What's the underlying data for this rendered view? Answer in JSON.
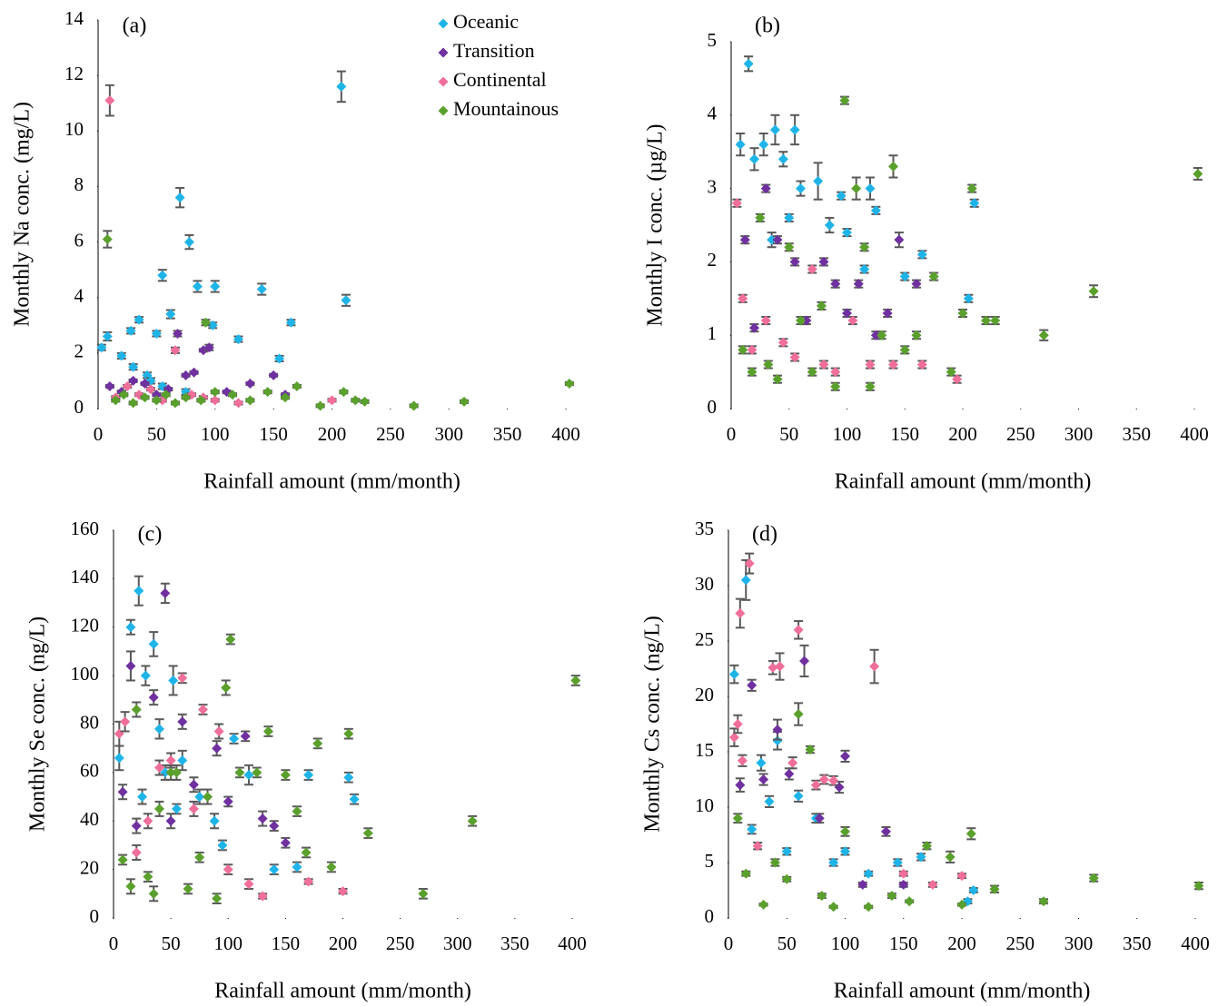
{
  "chart_data": [
    {
      "type": "scatter",
      "label": "(a)",
      "x_label": "Rainfall amount (mm/month)",
      "y_label": "Monthly Na conc. (mg/L)",
      "xlim": [
        0,
        400
      ],
      "xticks": [
        0,
        50,
        100,
        150,
        200,
        250,
        300,
        350,
        400
      ],
      "ylim": [
        0,
        14
      ],
      "yticks": [
        0,
        2,
        4,
        6,
        8,
        10,
        12,
        14
      ],
      "legend": "upper right",
      "series": [
        {
          "name": "Oceanic",
          "color": "#1fb4e8",
          "x": [
            3,
            8,
            20,
            28,
            35,
            42,
            50,
            55,
            62,
            70,
            78,
            85,
            98,
            100,
            120,
            140,
            155,
            165,
            208,
            212,
            30,
            45,
            55,
            75
          ],
          "values": [
            2.2,
            2.6,
            1.9,
            2.8,
            3.2,
            1.2,
            2.7,
            4.8,
            3.4,
            7.6,
            6.0,
            4.4,
            3.0,
            4.4,
            2.5,
            4.3,
            1.8,
            3.1,
            11.6,
            3.9,
            1.5,
            1.0,
            0.8,
            0.6
          ],
          "errors": [
            0.1,
            0.15,
            0.1,
            0.1,
            0.1,
            0.1,
            0.1,
            0.2,
            0.15,
            0.35,
            0.25,
            0.2,
            0.1,
            0.2,
            0.1,
            0.2,
            0.1,
            0.1,
            0.55,
            0.2,
            0.1,
            0.1,
            0.1,
            0.1
          ]
        },
        {
          "name": "Transition",
          "color": "#7030a0",
          "x": [
            10,
            20,
            30,
            40,
            50,
            60,
            68,
            75,
            82,
            90,
            95,
            110,
            130,
            150,
            160
          ],
          "values": [
            0.8,
            0.6,
            1.0,
            0.9,
            0.5,
            0.7,
            2.7,
            1.2,
            1.3,
            2.1,
            2.2,
            0.6,
            0.9,
            1.2,
            0.5
          ],
          "errors": [
            0.05,
            0.05,
            0.05,
            0.05,
            0.05,
            0.05,
            0.1,
            0.05,
            0.05,
            0.05,
            0.1,
            0.05,
            0.05,
            0.05,
            0.05
          ]
        },
        {
          "name": "Continental",
          "color": "#f06e9a",
          "x": [
            10,
            15,
            25,
            35,
            45,
            55,
            66,
            80,
            90,
            100,
            120,
            200
          ],
          "values": [
            11.1,
            0.4,
            0.8,
            0.5,
            0.7,
            0.3,
            2.1,
            0.5,
            0.4,
            0.3,
            0.2,
            0.3
          ],
          "errors": [
            0.55,
            0.05,
            0.05,
            0.05,
            0.05,
            0.05,
            0.1,
            0.05,
            0.05,
            0.05,
            0.05,
            0.05
          ]
        },
        {
          "name": "Mountainous",
          "color": "#5aa02c",
          "x": [
            8,
            15,
            22,
            30,
            40,
            50,
            58,
            66,
            75,
            88,
            92,
            100,
            115,
            130,
            145,
            160,
            170,
            190,
            210,
            220,
            228,
            270,
            313,
            403
          ],
          "values": [
            6.1,
            0.3,
            0.5,
            0.2,
            0.4,
            0.3,
            0.5,
            0.2,
            0.4,
            0.3,
            3.1,
            0.6,
            0.5,
            0.3,
            0.6,
            0.4,
            0.8,
            0.1,
            0.6,
            0.3,
            0.25,
            0.1,
            0.25,
            0.9
          ],
          "errors": [
            0.3,
            0.05,
            0.05,
            0.05,
            0.05,
            0.05,
            0.05,
            0.05,
            0.05,
            0.05,
            0.1,
            0.05,
            0.05,
            0.05,
            0.05,
            0.05,
            0.05,
            0.05,
            0.05,
            0.05,
            0.05,
            0.05,
            0.05,
            0.05
          ]
        }
      ]
    },
    {
      "type": "scatter",
      "label": "(b)",
      "x_label": "Rainfall amount (mm/month)",
      "y_label": "Monthly I conc. (µg/L)",
      "xlim": [
        0,
        400
      ],
      "xticks": [
        0,
        50,
        100,
        150,
        200,
        250,
        300,
        350,
        400
      ],
      "ylim": [
        0,
        5
      ],
      "yticks": [
        0,
        1,
        2,
        3,
        4,
        5
      ],
      "series": [
        {
          "color": "#1fb4e8",
          "x": [
            8,
            15,
            20,
            28,
            38,
            45,
            55,
            60,
            75,
            85,
            95,
            100,
            115,
            120,
            125,
            150,
            165,
            205,
            210,
            35,
            50
          ],
          "values": [
            3.6,
            4.7,
            3.4,
            3.6,
            3.8,
            3.4,
            3.8,
            3.0,
            3.1,
            2.5,
            2.9,
            2.4,
            1.9,
            3.0,
            2.7,
            1.8,
            2.1,
            1.5,
            2.8,
            2.3,
            2.6
          ],
          "errors": [
            0.15,
            0.1,
            0.15,
            0.15,
            0.2,
            0.1,
            0.2,
            0.1,
            0.25,
            0.1,
            0.05,
            0.05,
            0.05,
            0.15,
            0.05,
            0.05,
            0.05,
            0.05,
            0.05,
            0.1,
            0.05
          ]
        },
        {
          "color": "#7030a0",
          "x": [
            12,
            20,
            30,
            40,
            55,
            65,
            80,
            90,
            100,
            110,
            125,
            135,
            145,
            160
          ],
          "values": [
            2.3,
            1.1,
            3.0,
            2.3,
            2.0,
            1.2,
            2.0,
            1.7,
            1.3,
            1.7,
            1.0,
            1.3,
            2.3,
            1.7
          ],
          "errors": [
            0.05,
            0.05,
            0.05,
            0.05,
            0.05,
            0.05,
            0.05,
            0.05,
            0.05,
            0.05,
            0.05,
            0.05,
            0.1,
            0.05
          ]
        },
        {
          "color": "#f06e9a",
          "x": [
            5,
            10,
            18,
            30,
            45,
            55,
            70,
            80,
            90,
            105,
            120,
            140,
            165,
            195
          ],
          "values": [
            2.8,
            1.5,
            0.8,
            1.2,
            0.9,
            0.7,
            1.9,
            0.6,
            0.5,
            1.2,
            0.6,
            0.6,
            0.6,
            0.4
          ],
          "errors": [
            0.05,
            0.05,
            0.05,
            0.05,
            0.05,
            0.05,
            0.05,
            0.05,
            0.05,
            0.05,
            0.05,
            0.05,
            0.05,
            0.05
          ]
        },
        {
          "color": "#5aa02c",
          "x": [
            10,
            18,
            25,
            32,
            40,
            50,
            60,
            70,
            78,
            90,
            98,
            108,
            115,
            120,
            130,
            140,
            150,
            160,
            175,
            190,
            200,
            208,
            220,
            228,
            270,
            313,
            403
          ],
          "values": [
            0.8,
            0.5,
            2.6,
            0.6,
            0.4,
            2.2,
            1.2,
            0.5,
            1.4,
            0.3,
            4.2,
            3.0,
            2.2,
            0.3,
            1.0,
            3.3,
            0.8,
            1.0,
            1.8,
            0.5,
            1.3,
            3.0,
            1.2,
            1.2,
            1.0,
            1.6,
            3.2
          ],
          "errors": [
            0.05,
            0.05,
            0.05,
            0.05,
            0.05,
            0.05,
            0.05,
            0.05,
            0.05,
            0.05,
            0.05,
            0.15,
            0.05,
            0.05,
            0.05,
            0.15,
            0.05,
            0.05,
            0.05,
            0.05,
            0.05,
            0.05,
            0.05,
            0.05,
            0.07,
            0.08,
            0.08
          ]
        }
      ]
    },
    {
      "type": "scatter",
      "label": "(c)",
      "x_label": "Rainfall amount (mm/month)",
      "y_label": "Monthly Se conc. (ng/L)",
      "xlim": [
        0,
        400
      ],
      "xticks": [
        0,
        50,
        100,
        150,
        200,
        250,
        300,
        350,
        400
      ],
      "ylim": [
        0,
        160
      ],
      "yticks": [
        0,
        20,
        40,
        60,
        80,
        100,
        120,
        140,
        160
      ],
      "series": [
        {
          "color": "#1fb4e8",
          "x": [
            5,
            15,
            22,
            28,
            35,
            40,
            45,
            52,
            60,
            75,
            88,
            95,
            105,
            118,
            140,
            160,
            170,
            205,
            210,
            25,
            55
          ],
          "values": [
            66,
            120,
            135,
            100,
            113,
            78,
            60,
            98,
            65,
            50,
            40,
            30,
            74,
            59,
            20,
            21,
            59,
            58,
            49,
            50,
            45
          ],
          "errors": [
            5,
            3,
            6,
            4,
            5,
            4,
            3,
            6,
            4,
            3,
            3,
            2,
            2,
            4,
            2,
            2,
            2,
            2,
            2,
            3,
            2
          ]
        },
        {
          "color": "#7030a0",
          "x": [
            8,
            15,
            20,
            35,
            45,
            50,
            60,
            70,
            90,
            100,
            115,
            130,
            140,
            150
          ],
          "values": [
            52,
            104,
            38,
            91,
            134,
            40,
            81,
            55,
            70,
            48,
            75,
            41,
            38,
            31
          ],
          "errors": [
            3,
            6,
            3,
            3,
            4,
            3,
            3,
            3,
            3,
            2,
            2,
            3,
            2,
            2
          ]
        },
        {
          "color": "#f06e9a",
          "x": [
            5,
            10,
            20,
            30,
            40,
            50,
            60,
            70,
            78,
            92,
            100,
            118,
            130,
            170,
            200
          ],
          "values": [
            76,
            81,
            27,
            40,
            62,
            65,
            99,
            45,
            86,
            77,
            20,
            14,
            9,
            15,
            11
          ],
          "errors": [
            5,
            4,
            3,
            3,
            3,
            3,
            2,
            3,
            2,
            3,
            2,
            2,
            1,
            1,
            1
          ]
        },
        {
          "color": "#5aa02c",
          "x": [
            8,
            15,
            20,
            30,
            35,
            40,
            50,
            55,
            65,
            75,
            82,
            90,
            98,
            102,
            110,
            125,
            135,
            150,
            160,
            168,
            178,
            190,
            205,
            222,
            270,
            313,
            403
          ],
          "values": [
            24,
            13,
            86,
            17,
            10,
            45,
            60,
            60,
            12,
            25,
            50,
            8,
            95,
            115,
            60,
            60,
            77,
            59,
            44,
            27,
            72,
            21,
            76,
            35,
            10,
            40,
            98
          ],
          "errors": [
            2,
            3,
            3,
            2,
            3,
            3,
            3,
            3,
            2,
            2,
            3,
            2,
            3,
            2,
            2,
            2,
            2,
            2,
            2,
            2,
            2,
            2,
            2,
            2,
            2,
            2,
            2
          ]
        }
      ]
    },
    {
      "type": "scatter",
      "label": "(d)",
      "x_label": "Rainfall amount (mm/month)",
      "y_label": "Monthly Cs conc. (ng/L)",
      "xlim": [
        0,
        400
      ],
      "xticks": [
        0,
        50,
        100,
        150,
        200,
        250,
        300,
        350,
        400
      ],
      "ylim": [
        0,
        35
      ],
      "yticks": [
        0,
        5,
        10,
        15,
        20,
        25,
        30,
        35
      ],
      "series": [
        {
          "color": "#1fb4e8",
          "x": [
            5,
            15,
            20,
            28,
            35,
            42,
            50,
            60,
            75,
            90,
            100,
            120,
            145,
            165,
            205,
            210
          ],
          "values": [
            22,
            30.5,
            8,
            14,
            10.5,
            16,
            6,
            11,
            9,
            5,
            6,
            4,
            5,
            5.5,
            1.5,
            2.5
          ],
          "errors": [
            0.8,
            1.8,
            0.4,
            0.7,
            0.5,
            0.8,
            0.3,
            0.5,
            0.4,
            0.3,
            0.3,
            0.2,
            0.3,
            0.3,
            0.2,
            0.2
          ]
        },
        {
          "color": "#7030a0",
          "x": [
            10,
            20,
            30,
            42,
            52,
            65,
            78,
            95,
            100,
            115,
            135,
            150
          ],
          "values": [
            12,
            21,
            12.5,
            17,
            13,
            23.2,
            9,
            11.8,
            14.6,
            3,
            7.8,
            3
          ],
          "errors": [
            0.6,
            0.5,
            0.5,
            0.9,
            0.5,
            1.4,
            0.4,
            0.5,
            0.5,
            0.2,
            0.4,
            0.2
          ]
        },
        {
          "color": "#f06e9a",
          "x": [
            5,
            8,
            10,
            12,
            18,
            25,
            38,
            44,
            55,
            60,
            75,
            82,
            90,
            125,
            150,
            175,
            200
          ],
          "values": [
            16.3,
            17.5,
            27.5,
            14.2,
            32,
            6.5,
            22.6,
            22.7,
            14,
            26,
            12,
            12.5,
            12.4,
            22.7,
            4,
            3,
            3.8
          ],
          "errors": [
            0.8,
            0.8,
            1.3,
            0.5,
            0.9,
            0.3,
            0.6,
            1.2,
            0.5,
            0.8,
            0.4,
            0.4,
            0.4,
            1.5,
            0.2,
            0.2,
            0.2
          ]
        },
        {
          "color": "#5aa02c",
          "x": [
            8,
            15,
            30,
            40,
            50,
            60,
            70,
            80,
            90,
            100,
            120,
            140,
            155,
            170,
            190,
            200,
            208,
            228,
            270,
            313,
            403
          ],
          "values": [
            9,
            4,
            1.2,
            5,
            3.5,
            18.4,
            15.2,
            2,
            1,
            7.8,
            1,
            2,
            1.5,
            6.5,
            5.5,
            1.2,
            7.6,
            2.6,
            1.5,
            3.6,
            2.9
          ],
          "errors": [
            0.4,
            0.2,
            0.1,
            0.3,
            0.2,
            1.0,
            0.3,
            0.2,
            0.1,
            0.4,
            0.1,
            0.2,
            0.1,
            0.3,
            0.5,
            0.1,
            0.5,
            0.3,
            0.2,
            0.3,
            0.3
          ]
        }
      ]
    }
  ]
}
